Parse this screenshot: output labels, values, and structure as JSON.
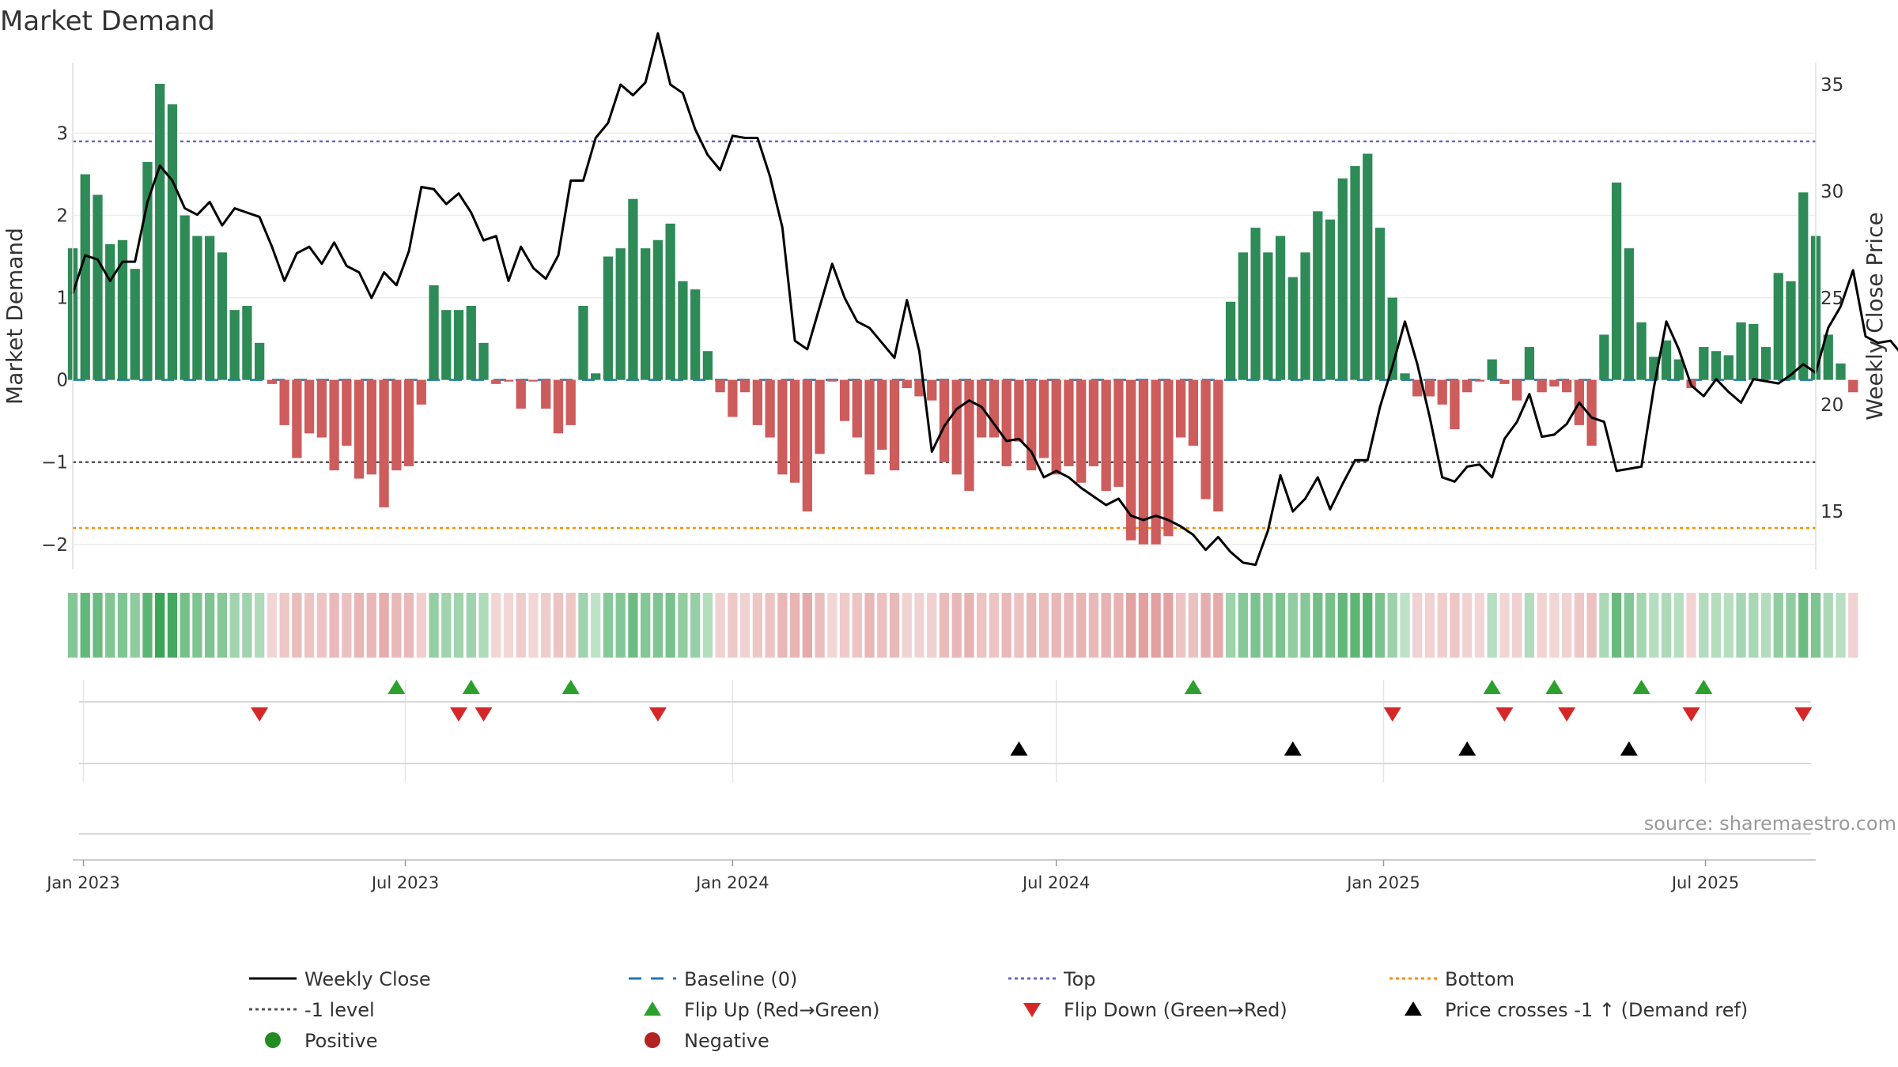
{
  "chart_data": {
    "type": "bar",
    "title": "Market Demand",
    "source": "source: sharemaestro.com",
    "left_axis": {
      "label": "Market Demand",
      "range": [
        -2.3,
        3.85
      ],
      "ticks": [
        -2,
        -1,
        0,
        1,
        2,
        3
      ],
      "tick_labels": [
        "−2",
        "−1",
        "0",
        "1",
        "2",
        "3"
      ]
    },
    "right_axis": {
      "label": "Weekly Close Price",
      "range": [
        12.3,
        36.0
      ],
      "ticks": [
        15,
        20,
        25,
        30,
        35
      ],
      "tick_labels": [
        "15",
        "20",
        "25",
        "30",
        "35"
      ]
    },
    "x_axis": {
      "start": "2022-12-26",
      "end": "2025-09-01",
      "ticks": [
        "2023-01-01",
        "2023-07-01",
        "2024-01-01",
        "2024-07-01",
        "2025-01-01",
        "2025-07-01"
      ],
      "tick_labels": [
        "Jan 2023",
        "Jul 2023",
        "Jan 2024",
        "Jul 2024",
        "Jan 2025",
        "Jul 2025"
      ]
    },
    "levels": {
      "top": 2.9,
      "minus1": -1,
      "bottom": -1.8,
      "baseline": 0
    },
    "series": [
      {
        "name": "Market Demand",
        "start_date": "2022-12-26",
        "interval_days": 7,
        "values": [
          1.6,
          2.5,
          2.25,
          1.65,
          1.7,
          1.35,
          2.65,
          3.6,
          3.35,
          2.0,
          1.75,
          1.75,
          1.55,
          0.85,
          0.9,
          0.45,
          -0.05,
          -0.55,
          -0.95,
          -0.65,
          -0.7,
          -1.1,
          -0.8,
          -1.2,
          -1.15,
          -1.55,
          -1.1,
          -1.05,
          -0.3,
          1.15,
          0.85,
          0.85,
          0.9,
          0.45,
          -0.05,
          -0.02,
          -0.35,
          -0.02,
          -0.35,
          -0.65,
          -0.55,
          0.9,
          0.08,
          1.5,
          1.6,
          2.2,
          1.6,
          1.7,
          1.9,
          1.2,
          1.1,
          0.35,
          -0.15,
          -0.45,
          -0.15,
          -0.55,
          -0.7,
          -1.15,
          -1.25,
          -1.6,
          -0.9,
          -0.02,
          -0.5,
          -0.7,
          -1.15,
          -0.85,
          -1.1,
          -0.1,
          -0.2,
          -0.25,
          -1.0,
          -1.15,
          -1.35,
          -0.7,
          -0.7,
          -1.05,
          -0.75,
          -1.1,
          -0.95,
          -1.15,
          -1.05,
          -1.25,
          -1.05,
          -1.35,
          -1.3,
          -1.95,
          -2.0,
          -2.0,
          -1.9,
          -0.7,
          -0.8,
          -1.45,
          -1.6,
          0.95,
          1.55,
          1.85,
          1.55,
          1.75,
          1.25,
          1.55,
          2.05,
          1.95,
          2.45,
          2.6,
          2.75,
          1.85,
          1.0,
          0.08,
          -0.2,
          -0.2,
          -0.3,
          -0.6,
          -0.15,
          -0.02,
          0.25,
          -0.05,
          -0.25,
          0.4,
          -0.15,
          -0.08,
          -0.15,
          -0.55,
          -0.8,
          0.55,
          2.4,
          1.6,
          0.7,
          0.28,
          0.48,
          0.25,
          -0.1,
          0.4,
          0.35,
          0.3,
          0.7,
          0.68,
          0.4,
          1.3,
          1.2,
          2.28,
          1.75,
          0.55,
          0.2,
          -0.15
        ]
      },
      {
        "name": "Weekly Close",
        "start_date": "2022-12-26",
        "interval_days": 7,
        "values": [
          25.2,
          27.0,
          26.8,
          25.8,
          26.7,
          26.7,
          29.5,
          31.2,
          30.5,
          29.2,
          28.9,
          29.5,
          28.4,
          29.2,
          29.0,
          28.8,
          27.4,
          25.8,
          27.1,
          27.4,
          26.6,
          27.6,
          26.5,
          26.2,
          25.0,
          26.2,
          25.6,
          27.2,
          30.2,
          30.1,
          29.4,
          29.9,
          29.0,
          27.7,
          27.9,
          25.8,
          27.4,
          26.4,
          25.9,
          27.0,
          30.5,
          30.5,
          32.5,
          33.2,
          35.0,
          34.5,
          35.1,
          37.4,
          35.0,
          34.6,
          32.9,
          31.7,
          31.0,
          32.6,
          32.5,
          32.5,
          30.7,
          28.3,
          23.0,
          22.6,
          24.6,
          26.6,
          25.0,
          23.9,
          23.6,
          22.9,
          22.2,
          24.9,
          22.5,
          17.8,
          19.0,
          19.8,
          20.2,
          19.9,
          19.1,
          18.3,
          18.4,
          17.8,
          16.6,
          16.9,
          16.6,
          16.1,
          15.7,
          15.3,
          15.6,
          14.8,
          14.6,
          14.8,
          14.6,
          14.3,
          13.9,
          13.2,
          13.8,
          13.1,
          12.6,
          12.5,
          14.1,
          16.7,
          15.0,
          15.6,
          16.6,
          15.1,
          16.3,
          17.4,
          17.4,
          19.9,
          21.8,
          23.9,
          21.9,
          19.4,
          16.6,
          16.4,
          17.1,
          17.2,
          16.6,
          18.4,
          19.2,
          20.5,
          18.5,
          18.6,
          19.1,
          20.1,
          19.4,
          19.2,
          16.9,
          17.0,
          17.1,
          20.8,
          23.9,
          22.6,
          20.9,
          20.4,
          21.2,
          20.6,
          20.1,
          21.2,
          21.1,
          21.0,
          21.4,
          21.9,
          21.5,
          23.6,
          24.6,
          26.3,
          23.2,
          22.9,
          23.0,
          22.3
        ]
      }
    ],
    "flip_up_dates": [
      "2023-06-26",
      "2023-08-07",
      "2023-10-02",
      "2024-09-16",
      "2025-03-03",
      "2025-04-07",
      "2025-05-26",
      "2025-06-30"
    ],
    "flip_down_dates": [
      "2023-04-10",
      "2023-07-31",
      "2023-08-14",
      "2023-11-20",
      "2025-01-06",
      "2025-03-10",
      "2025-04-14",
      "2025-06-23",
      "2025-08-25"
    ],
    "price_cross_dates": [
      "2024-06-10",
      "2024-11-11",
      "2025-02-17",
      "2025-05-19"
    ],
    "legend": [
      {
        "label": "Weekly Close",
        "symbol": "line",
        "color": "#000000"
      },
      {
        "label": "Baseline (0)",
        "symbol": "dash",
        "color": "#1f77b4"
      },
      {
        "label": "Top",
        "symbol": "dot",
        "color": "#6b66c8"
      },
      {
        "label": "Bottom",
        "symbol": "dot",
        "color": "#ff8c00"
      },
      {
        "label": "-1 level",
        "symbol": "dot",
        "color": "#555555"
      },
      {
        "label": "Flip Up (Red→Green)",
        "symbol": "tri-up",
        "color": "#2ca02c"
      },
      {
        "label": "Flip Down (Green→Red)",
        "symbol": "tri-down",
        "color": "#d62728"
      },
      {
        "label": "Price crosses -1 ↑ (Demand ref)",
        "symbol": "tri-up",
        "color": "#000000"
      },
      {
        "label": "Positive",
        "symbol": "circle",
        "color": "#228b22"
      },
      {
        "label": "Negative",
        "symbol": "circle",
        "color": "#b22222"
      }
    ],
    "colors": {
      "positive": "#2e8b57",
      "negative": "#cd5c5c",
      "flip_up": "#2ca02c",
      "flip_down": "#d62728",
      "cross": "#000000",
      "price": "#000000"
    }
  }
}
